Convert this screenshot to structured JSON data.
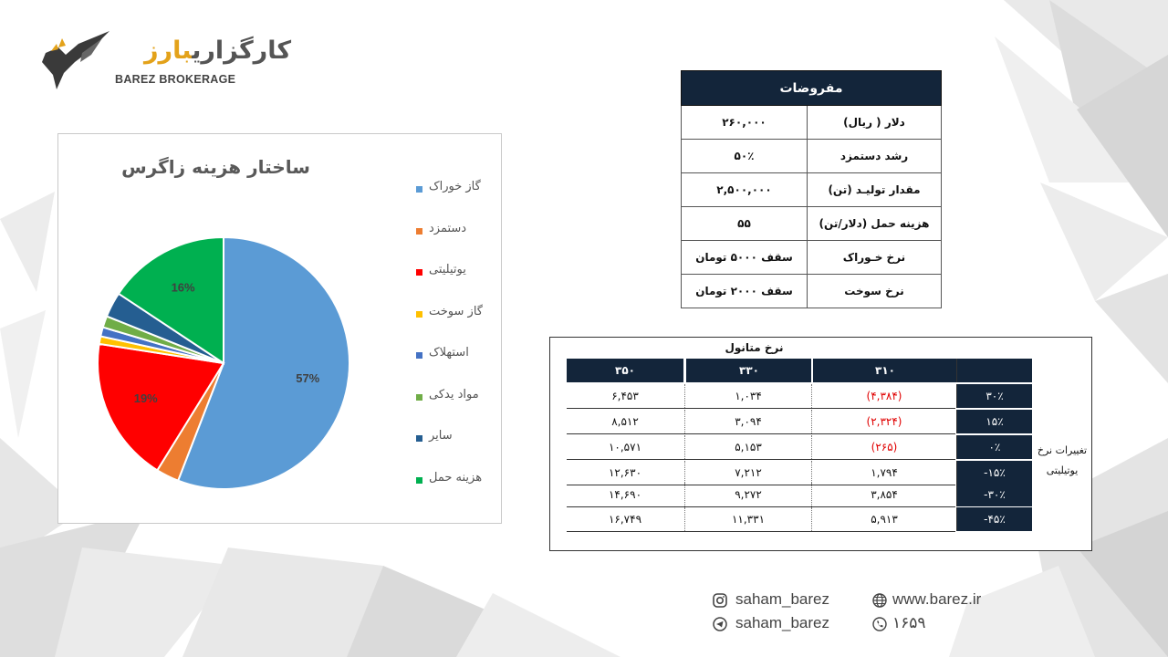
{
  "logo": {
    "name_fa": "کارگزاری بارز",
    "name_fa_part1": "کارگزاری",
    "name_fa_part2": "بارز",
    "name_en": "BAREZ BROKERAGE"
  },
  "pie_panel": {
    "title": "ساختار هزینه زاگرس"
  },
  "chart_data": {
    "type": "pie",
    "title": "ساختار هزینه زاگرس",
    "categories": [
      "گاز خوراک",
      "دستمزد",
      "یوتیلیتی",
      "گاز سوخت",
      "استهلاک",
      "مواد یدکی",
      "سایر",
      "هزینه حمل"
    ],
    "values": [
      57,
      3,
      19,
      1,
      1.2,
      1.5,
      3.3,
      16
    ],
    "labels_shown": [
      "57%",
      "",
      "19%",
      "",
      "",
      "",
      "",
      "16%"
    ],
    "colors": [
      "#5b9bd5",
      "#ed7d31",
      "#ff0000",
      "#ffc000",
      "#4472c4",
      "#70ad47",
      "#255e91",
      "#00b050"
    ],
    "legend_position": "right"
  },
  "assumptions": {
    "title": "مفروضات",
    "rows": [
      {
        "label": "دلار ( ریال)",
        "value": "۲۶۰,۰۰۰"
      },
      {
        "label": "رشد دستمزد",
        "value": "۵۰٪"
      },
      {
        "label": "مقدار تولیـد (تن)",
        "value": "۲,۵۰۰,۰۰۰"
      },
      {
        "label": "هزینه حمل (دلار/تن)",
        "value": "۵۵"
      },
      {
        "label": "نرخ خـوراک",
        "value": "سقف ۵۰۰۰ تومان"
      },
      {
        "label": "نرخ  سوخت",
        "value": "سقف ۲۰۰۰ تومان"
      }
    ]
  },
  "sensitivity": {
    "header": "نرخ متانول",
    "columns": [
      "۳۵۰",
      "۳۳۰",
      "۳۱۰"
    ],
    "side_label": "تغییرات نرخ یوتیلیتی",
    "rows": [
      {
        "change": "۳۰٪",
        "v350": "۶,۴۵۳",
        "v330": "۱,۰۳۴",
        "v310": "(۴,۳۸۴)",
        "neg": true
      },
      {
        "change": "۱۵٪",
        "v350": "۸,۵۱۲",
        "v330": "۳,۰۹۴",
        "v310": "(۲,۳۲۴)",
        "neg": true
      },
      {
        "change": "۰٪",
        "v350": "۱۰,۵۷۱",
        "v330": "۵,۱۵۳",
        "v310": "(۲۶۵)",
        "neg": true
      },
      {
        "change": "-۱۵٪",
        "v350": "۱۲,۶۳۰",
        "v330": "۷,۲۱۲",
        "v310": "۱,۷۹۴",
        "neg": false
      },
      {
        "change": "-۳۰٪",
        "v350": "۱۴,۶۹۰",
        "v330": "۹,۲۷۲",
        "v310": "۳,۸۵۴",
        "neg": false
      },
      {
        "change": "-۴۵٪",
        "v350": "۱۶,۷۴۹",
        "v330": "۱۱,۳۳۱",
        "v310": "۵,۹۱۳",
        "neg": false
      }
    ]
  },
  "footer": {
    "instagram": "saham_barez",
    "telegram": "saham_barez",
    "website": "www.barez.ir",
    "phone": "۱۶۵۹"
  }
}
